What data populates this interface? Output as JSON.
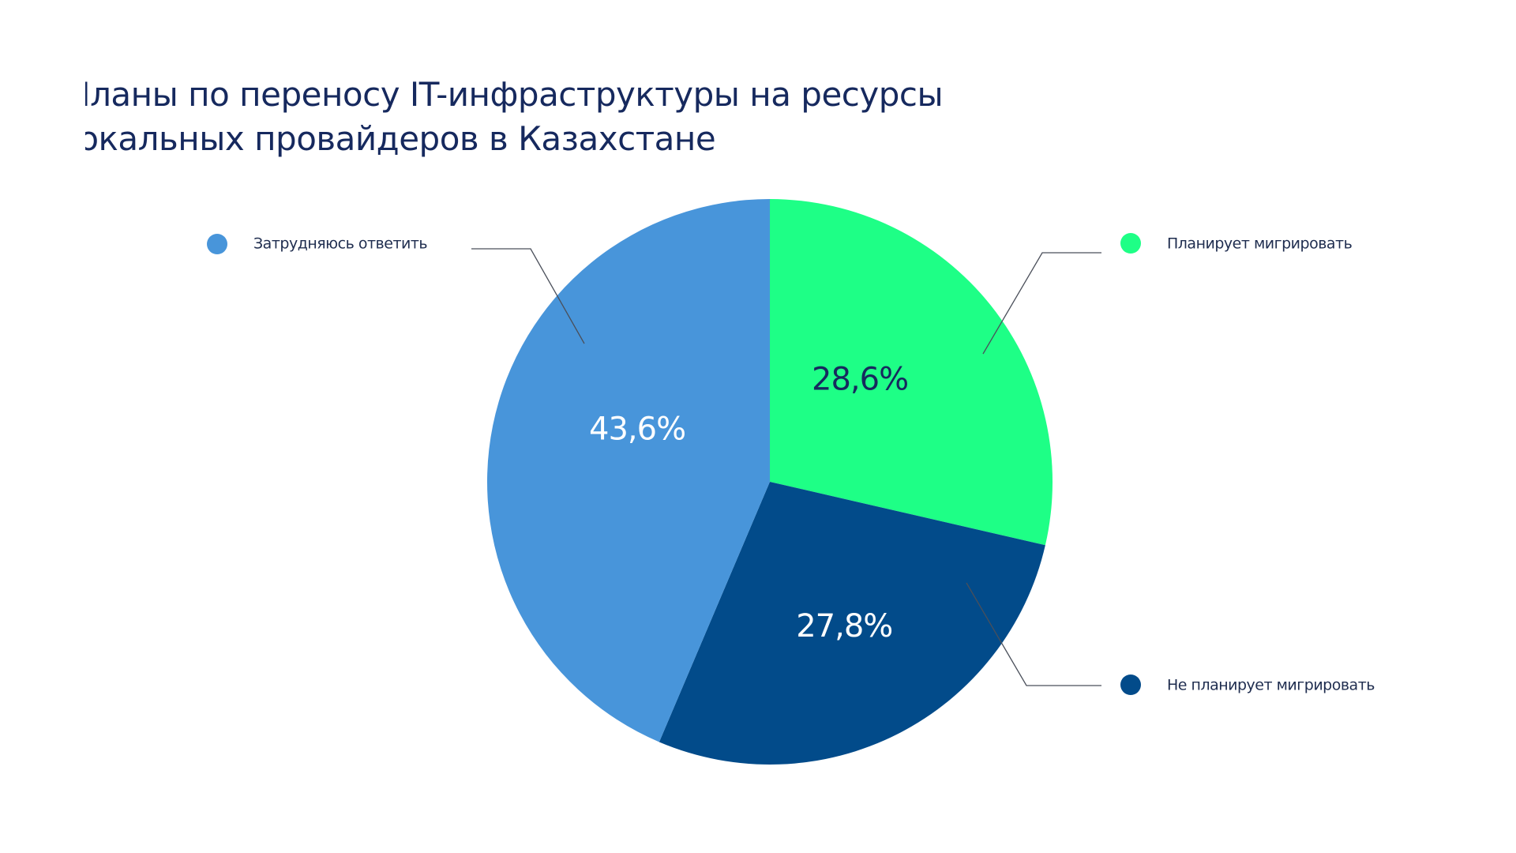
{
  "chart_data": {
    "type": "pie",
    "title": "Планы по переносу IT-инфраструктуры на ресурсы локальных провайдеров в Казахстане",
    "title_lines": [
      "Планы по переносу IT-инфраструктуры на ресурсы",
      "локальных провайдеров в Казахстане"
    ],
    "legend_position": "labels beside slices with leader lines",
    "slices": [
      {
        "label": "Планирует мигрировать",
        "value": 28.6,
        "display": "28,6%",
        "color": "#1eff86",
        "text_color": "#16295e"
      },
      {
        "label": "Не планирует мигрировать",
        "value": 27.8,
        "display": "27,8%",
        "color": "#024b8a",
        "text_color": "#ffffff"
      },
      {
        "label": "Затрудняюсь ответить",
        "value": 43.6,
        "display": "43,6%",
        "color": "#4895da",
        "text_color": "#ffffff"
      }
    ]
  }
}
